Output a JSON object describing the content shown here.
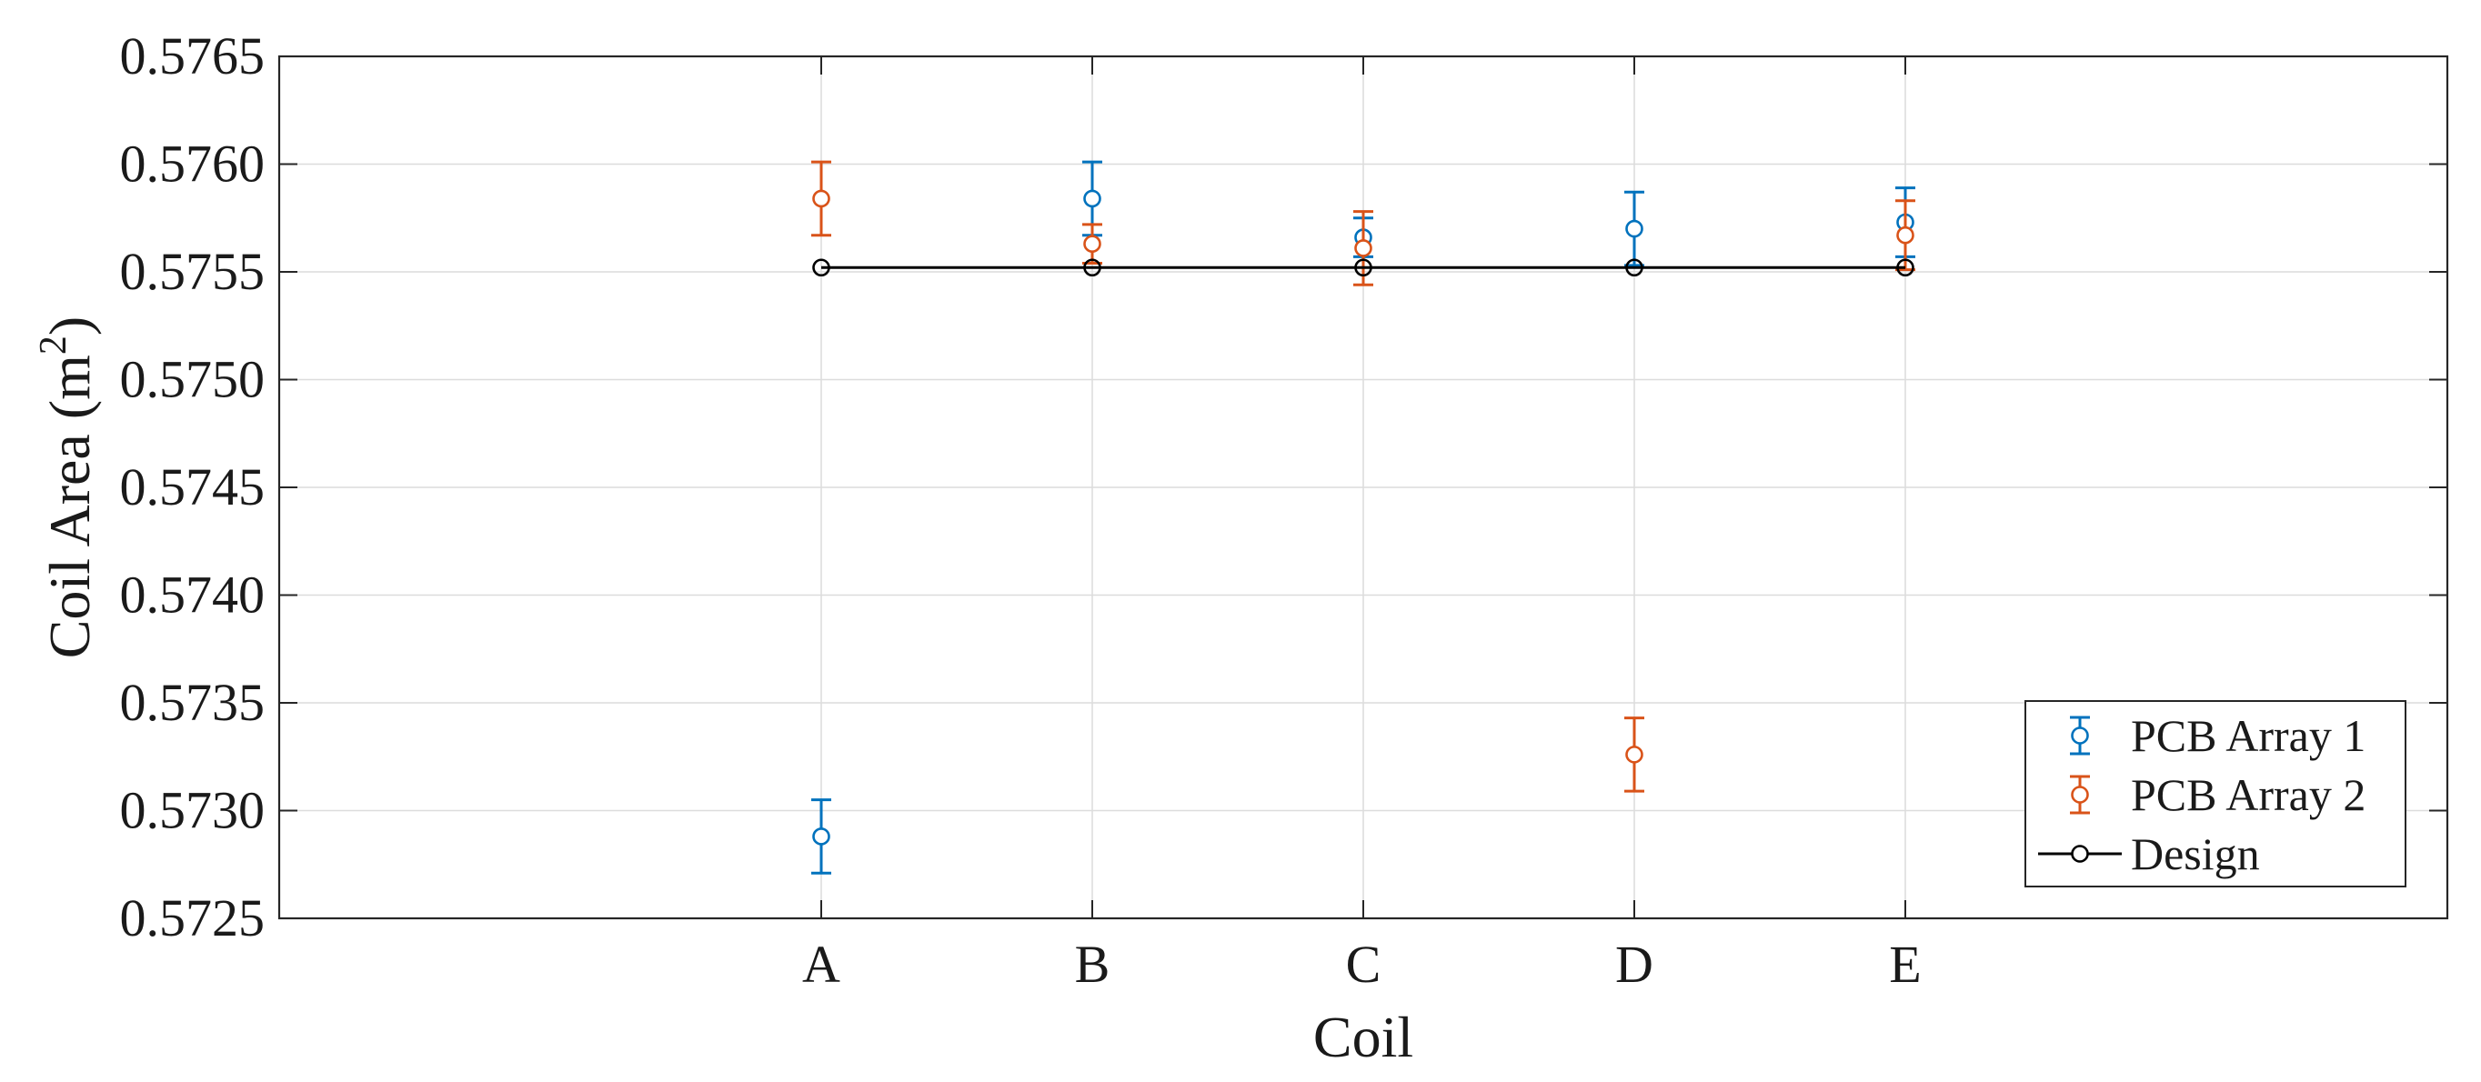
{
  "chart_data": {
    "type": "scatter",
    "title": "",
    "xlabel": "Coil",
    "ylabel_main": "Coil Area (m",
    "ylabel_sup": "2",
    "ylabel_end": ")",
    "categories": [
      "A",
      "B",
      "C",
      "D",
      "E"
    ],
    "ylim": [
      0.5725,
      0.5765
    ],
    "yticks": [
      "0.5725",
      "0.5730",
      "0.5735",
      "0.5740",
      "0.5745",
      "0.5750",
      "0.5755",
      "0.5760",
      "0.5765"
    ],
    "grid": true,
    "legend_position": "bottom-right",
    "series": [
      {
        "name": "PCB Array 1",
        "color": "#0072BD",
        "style": "errorbar-marker",
        "values": [
          0.57288,
          0.57584,
          0.57566,
          0.5757,
          0.57573
        ],
        "errors": [
          0.00017,
          0.00017,
          9e-05,
          0.00017,
          0.00016
        ]
      },
      {
        "name": "PCB Array 2",
        "color": "#D95319",
        "style": "errorbar-marker",
        "values": [
          0.57584,
          0.57563,
          0.57561,
          0.57326,
          0.57567
        ],
        "errors": [
          0.00017,
          9e-05,
          0.00017,
          0.00017,
          0.00016
        ]
      },
      {
        "name": "Design",
        "color": "#000000",
        "style": "line-marker",
        "values": [
          0.57552,
          0.57552,
          0.57552,
          0.57552,
          0.57552
        ]
      }
    ]
  }
}
